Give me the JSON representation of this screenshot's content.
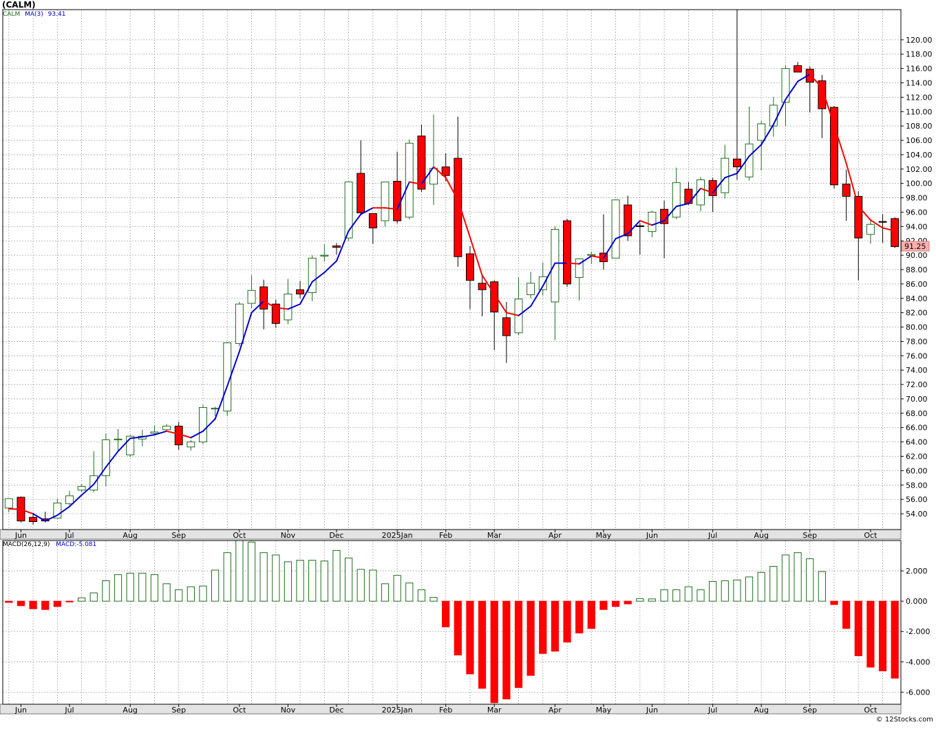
{
  "chart_data": [
    {
      "type": "candlestick",
      "title": "(CALM)",
      "legend": {
        "symbol": "CALM",
        "ma_label": "MA(3)",
        "ma_value": "93.41"
      },
      "last_price_label": "91.25",
      "yticks": [
        "54.00",
        "56.00",
        "58.00",
        "60.00",
        "62.00",
        "64.00",
        "66.00",
        "68.00",
        "70.00",
        "72.00",
        "74.00",
        "76.00",
        "78.00",
        "80.00",
        "82.00",
        "84.00",
        "86.00",
        "88.00",
        "90.00",
        "92.00",
        "94.00",
        "96.00",
        "98.00",
        "100.00",
        "102.00",
        "104.00",
        "106.00",
        "108.00",
        "110.00",
        "112.00",
        "114.00",
        "116.00",
        "118.00",
        "120.00"
      ],
      "ylim": [
        51.8,
        124.2
      ],
      "month_labels": [
        {
          "label": "Jun",
          "index": 1
        },
        {
          "label": "Jul",
          "index": 5
        },
        {
          "label": "Aug",
          "index": 10
        },
        {
          "label": "Sep",
          "index": 14
        },
        {
          "label": "Oct",
          "index": 19
        },
        {
          "label": "Nov",
          "index": 23
        },
        {
          "label": "Dec",
          "index": 27
        },
        {
          "label": "2025Jan",
          "index": 32
        },
        {
          "label": "Feb",
          "index": 36
        },
        {
          "label": "Mar",
          "index": 40
        },
        {
          "label": "Apr",
          "index": 45
        },
        {
          "label": "May",
          "index": 49
        },
        {
          "label": "Jun",
          "index": 53
        },
        {
          "label": "Jul",
          "index": 58
        },
        {
          "label": "Aug",
          "index": 62
        },
        {
          "label": "Sep",
          "index": 66
        },
        {
          "label": "Oct",
          "index": 71
        }
      ],
      "candles": [
        [
          54.8,
          56.1,
          54.2,
          56.1
        ],
        [
          56.3,
          56.4,
          52.8,
          53.0
        ],
        [
          53.5,
          54.0,
          52.5,
          52.9
        ],
        [
          53.3,
          54.3,
          52.8,
          53.0
        ],
        [
          53.4,
          56.1,
          53.4,
          55.5
        ],
        [
          55.4,
          57.2,
          55.2,
          56.5
        ],
        [
          57.3,
          58.1,
          57.0,
          57.8
        ],
        [
          57.3,
          62.7,
          57.0,
          59.3
        ],
        [
          59.3,
          65.2,
          57.8,
          64.3
        ],
        [
          64.4,
          65.8,
          62.6,
          64.4
        ],
        [
          62.2,
          65.0,
          61.9,
          64.8
        ],
        [
          64.4,
          65.7,
          63.4,
          64.8
        ],
        [
          65.2,
          66.3,
          64.9,
          65.4
        ],
        [
          65.7,
          66.5,
          65.4,
          66.2
        ],
        [
          66.2,
          66.8,
          62.9,
          63.6
        ],
        [
          63.3,
          64.3,
          62.8,
          64.0
        ],
        [
          64.0,
          69.2,
          63.7,
          68.8
        ],
        [
          68.7,
          68.9,
          67.6,
          68.7
        ],
        [
          68.3,
          77.9,
          67.6,
          77.8
        ],
        [
          77.7,
          83.5,
          77.3,
          83.2
        ],
        [
          83.3,
          87.2,
          82.6,
          85.1
        ],
        [
          85.6,
          86.6,
          79.7,
          82.5
        ],
        [
          83.2,
          83.8,
          79.9,
          80.5
        ],
        [
          81.0,
          86.7,
          80.4,
          84.6
        ],
        [
          85.2,
          86.4,
          84.0,
          84.6
        ],
        [
          84.8,
          90.0,
          83.6,
          89.6
        ],
        [
          90.0,
          91.5,
          89.1,
          90.0
        ],
        [
          91.3,
          91.7,
          90.1,
          91.1
        ],
        [
          92.4,
          100.2,
          92.0,
          100.2
        ],
        [
          101.4,
          106.0,
          95.6,
          95.9
        ],
        [
          95.8,
          95.8,
          91.6,
          93.8
        ],
        [
          94.8,
          100.0,
          94.0,
          100.2
        ],
        [
          100.3,
          104.4,
          94.4,
          94.8
        ],
        [
          95.3,
          106.1,
          95.0,
          105.6
        ],
        [
          106.6,
          108.2,
          98.8,
          99.2
        ],
        [
          99.9,
          109.6,
          97.0,
          102.1
        ],
        [
          102.3,
          104.2,
          100.3,
          101.1
        ],
        [
          103.5,
          109.3,
          88.4,
          89.8
        ],
        [
          90.2,
          91.3,
          82.5,
          86.5
        ],
        [
          86.1,
          87.2,
          81.5,
          85.2
        ],
        [
          86.3,
          86.5,
          76.8,
          82.1
        ],
        [
          81.3,
          83.5,
          75.0,
          78.8
        ],
        [
          79.2,
          86.9,
          78.9,
          83.9
        ],
        [
          84.5,
          87.7,
          84.0,
          86.1
        ],
        [
          85.2,
          89.0,
          84.4,
          87.0
        ],
        [
          83.5,
          94.0,
          78.2,
          93.6
        ],
        [
          94.8,
          95.1,
          85.6,
          86.0
        ],
        [
          86.9,
          89.6,
          83.7,
          89.5
        ],
        [
          90.1,
          90.5,
          88.8,
          90.1
        ],
        [
          90.3,
          95.7,
          88.0,
          89.1
        ],
        [
          89.6,
          97.8,
          89.6,
          97.7
        ],
        [
          97.0,
          98.3,
          92.0,
          92.7
        ],
        [
          94.1,
          94.5,
          90.1,
          94.0
        ],
        [
          93.3,
          96.2,
          92.5,
          96.0
        ],
        [
          96.4,
          97.6,
          89.6,
          94.4
        ],
        [
          95.3,
          102.2,
          95.0,
          100.1
        ],
        [
          99.2,
          100.2,
          97.0,
          97.2
        ],
        [
          97.0,
          100.9,
          96.1,
          100.5
        ],
        [
          100.4,
          100.8,
          96.0,
          98.3
        ],
        [
          98.7,
          105.4,
          97.9,
          103.5
        ],
        [
          103.4,
          124.2,
          100.5,
          102.3
        ],
        [
          100.9,
          110.7,
          100.4,
          105.5
        ],
        [
          106.0,
          108.7,
          101.8,
          108.3
        ],
        [
          108.0,
          112.0,
          106.5,
          110.9
        ],
        [
          111.3,
          116.4,
          108.0,
          116.0
        ],
        [
          116.4,
          116.9,
          115.5,
          115.5
        ],
        [
          115.9,
          116.3,
          109.9,
          114.1
        ],
        [
          114.3,
          115.1,
          106.3,
          110.4
        ],
        [
          110.6,
          110.8,
          99.3,
          99.8
        ],
        [
          99.9,
          101.9,
          94.8,
          98.2
        ],
        [
          98.2,
          98.9,
          86.5,
          92.4
        ],
        [
          92.9,
          94.9,
          91.6,
          94.3
        ],
        [
          94.7,
          95.7,
          91.7,
          94.6
        ],
        [
          95.1,
          95.3,
          91.0,
          91.2
        ]
      ],
      "ma_values": [
        54.7,
        54.6,
        54.0,
        53.0,
        53.8,
        55.0,
        56.6,
        58.1,
        60.5,
        62.7,
        64.5,
        64.7,
        65.0,
        65.5,
        65.1,
        64.6,
        65.5,
        67.2,
        71.8,
        76.6,
        82.0,
        83.6,
        82.7,
        82.5,
        83.2,
        86.3,
        87.6,
        89.2,
        93.4,
        95.7,
        96.6,
        96.6,
        96.4,
        100.2,
        99.9,
        102.3,
        100.8,
        97.7,
        92.5,
        87.2,
        84.6,
        82.0,
        81.6,
        82.9,
        85.7,
        88.9,
        88.9,
        88.8,
        89.9,
        89.6,
        92.3,
        93.0,
        94.8,
        94.2,
        94.8,
        96.8,
        97.2,
        99.3,
        98.7,
        100.8,
        101.4,
        103.8,
        105.4,
        108.2,
        111.7,
        114.2,
        115.2,
        113.3,
        108.1,
        102.8,
        96.8,
        94.9,
        93.8,
        93.4
      ],
      "ma_colors": [
        "red",
        "red",
        "red",
        "blue",
        "blue",
        "blue",
        "blue",
        "blue",
        "blue",
        "blue",
        "blue",
        "blue",
        "blue",
        "blue",
        "red",
        "red",
        "blue",
        "blue",
        "blue",
        "blue",
        "blue",
        "blue",
        "red",
        "red",
        "blue",
        "blue",
        "blue",
        "blue",
        "blue",
        "blue",
        "blue",
        "red",
        "red",
        "blue",
        "red",
        "blue",
        "red",
        "red",
        "red",
        "red",
        "red",
        "red",
        "red",
        "blue",
        "blue",
        "blue",
        "blue",
        "red",
        "blue",
        "red",
        "blue",
        "blue",
        "blue",
        "red",
        "blue",
        "blue",
        "blue",
        "blue",
        "red",
        "blue",
        "blue",
        "blue",
        "blue",
        "blue",
        "blue",
        "blue",
        "blue",
        "red",
        "red",
        "red",
        "red",
        "red",
        "red",
        "red"
      ]
    },
    {
      "type": "bar",
      "title": "MACD(26,12,9)",
      "value_label": "MACD:-5.081",
      "yticks": [
        "2.000",
        "0.000",
        "-2.000",
        "-4.000",
        "-6.000"
      ],
      "ylim": [
        -6.8,
        4.0
      ],
      "values": [
        -0.08,
        -0.3,
        -0.5,
        -0.55,
        -0.35,
        -0.05,
        0.22,
        0.55,
        1.35,
        1.75,
        1.85,
        1.85,
        1.75,
        1.15,
        0.75,
        0.95,
        1.0,
        2.05,
        3.2,
        4.0,
        3.9,
        3.2,
        3.05,
        2.6,
        2.7,
        2.7,
        2.65,
        3.35,
        2.85,
        2.1,
        2.05,
        1.15,
        1.7,
        1.2,
        0.75,
        0.25,
        -1.7,
        -3.55,
        -4.8,
        -5.75,
        -6.7,
        -6.45,
        -5.7,
        -4.9,
        -3.45,
        -3.3,
        -2.7,
        -2.1,
        -1.8,
        -0.55,
        -0.35,
        -0.18,
        0.17,
        0.15,
        0.75,
        0.75,
        0.95,
        0.75,
        1.3,
        1.35,
        1.4,
        1.6,
        1.9,
        2.3,
        3.05,
        3.2,
        2.8,
        1.95,
        -0.22,
        -1.8,
        -3.6,
        -4.35,
        -4.6,
        -5.08
      ]
    }
  ],
  "copyright": "© 12Stocks.com",
  "colors": {
    "up": "#1e6b1e",
    "down": "#ff0000",
    "ma_up": "#0000cc",
    "ma_down": "#ff0000",
    "grid": "#a8a8a8",
    "axis_bg": "#e3e3e3"
  }
}
